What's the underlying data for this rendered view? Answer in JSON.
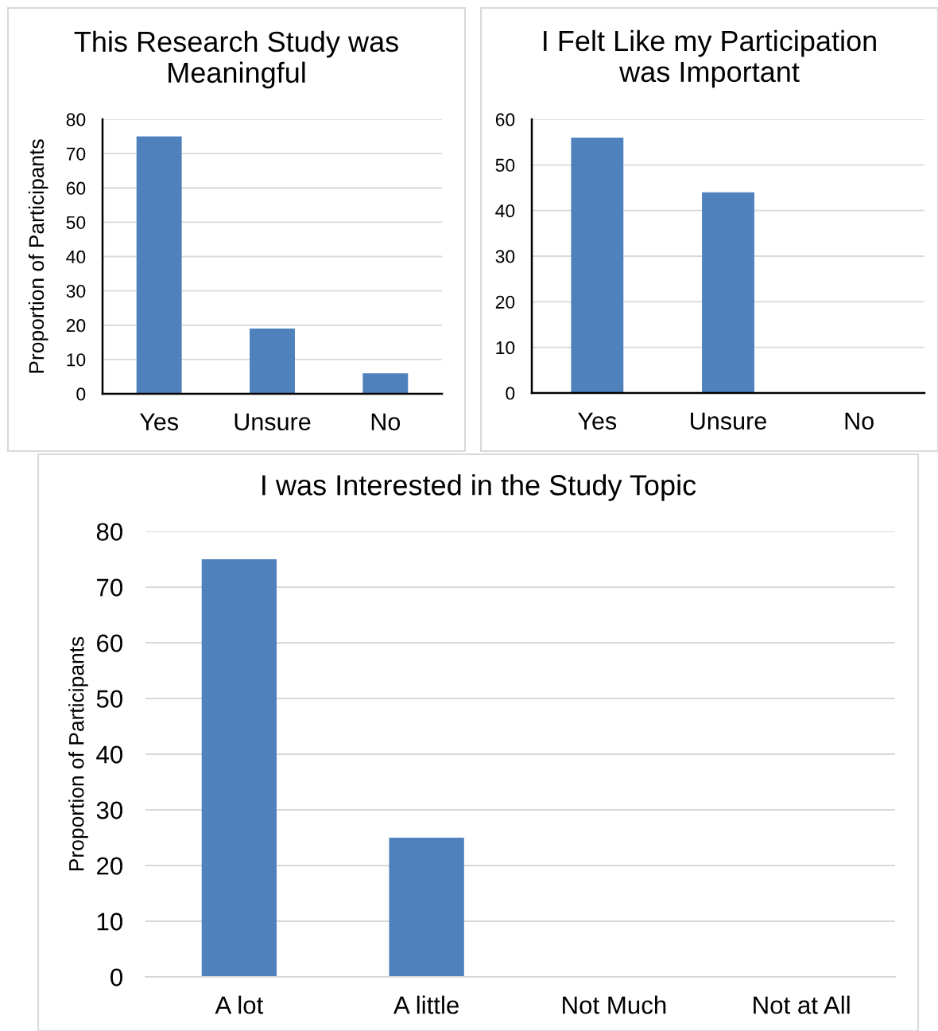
{
  "chart_data": [
    {
      "type": "bar",
      "title": "This Research Study was Meaningful",
      "ylabel": "Proportion of Participants",
      "categories": [
        "Yes",
        "Unsure",
        "No"
      ],
      "values": [
        75,
        19,
        6
      ],
      "color": "#4f81bd",
      "ylim": [
        0,
        80
      ],
      "yticks": [
        0,
        10,
        20,
        30,
        40,
        50,
        60,
        70,
        80
      ],
      "grid": "y"
    },
    {
      "type": "bar",
      "title": "I Felt Like my Participation was Important",
      "categories": [
        "Yes",
        "Unsure",
        "No"
      ],
      "values": [
        56,
        44,
        0
      ],
      "color": "#4f81bd",
      "ylim": [
        0,
        60
      ],
      "yticks": [
        0,
        10,
        20,
        30,
        40,
        50,
        60
      ],
      "grid": "y"
    },
    {
      "type": "bar",
      "title": "I was Interested in the Study Topic",
      "ylabel": "Proportion of Participants",
      "categories": [
        "A lot",
        "A little",
        "Not Much",
        "Not at All"
      ],
      "values": [
        75,
        25,
        0,
        0
      ],
      "color": "#4f81bd",
      "ylim": [
        0,
        80
      ],
      "yticks": [
        0,
        10,
        20,
        30,
        40,
        50,
        60,
        70,
        80
      ],
      "grid": "y"
    }
  ]
}
